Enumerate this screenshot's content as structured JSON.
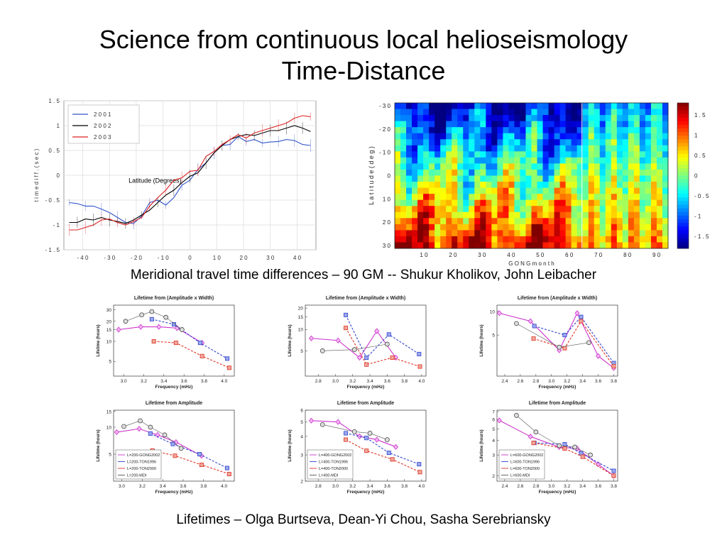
{
  "slide": {
    "title_line1": "Science from continuous local helioseismology",
    "title_line2": "Time-Distance",
    "caption1": "Meridional travel time differences – 90 GM -- Shukur Kholikov, John Leibacher",
    "caption2": "Lifetimes – Olga Burtseva, Dean-Yi Chou, Sasha Serebriansky"
  },
  "chart_data": [
    {
      "id": "meridional",
      "type": "line",
      "ylabel": "time diff. (sec)",
      "annotation": "Latitude (Degrees)",
      "xlim": [
        -47,
        47
      ],
      "ylim": [
        -1.5,
        1.5
      ],
      "xticks": [
        "-40",
        "-30",
        "-20",
        "-10",
        "0",
        "10",
        "20",
        "30",
        "40"
      ],
      "yticks": [
        "1.5",
        "1",
        "0.5",
        "0",
        "-0.5",
        "-1",
        "-1.5"
      ],
      "grid": true,
      "legend": "top-left",
      "x": [
        -45,
        -42,
        -39,
        -36,
        -33,
        -30,
        -27,
        -24,
        -21,
        -18,
        -15,
        -12,
        -9,
        -6,
        -3,
        0,
        3,
        6,
        9,
        12,
        15,
        18,
        21,
        24,
        27,
        30,
        33,
        36,
        39,
        42,
        45
      ],
      "series": [
        {
          "name": "2001",
          "color": "#3355cc",
          "values": [
            -0.55,
            -0.57,
            -0.62,
            -0.62,
            -0.68,
            -0.75,
            -0.85,
            -0.95,
            -0.97,
            -0.82,
            -0.55,
            -0.5,
            -0.6,
            -0.45,
            -0.2,
            -0.1,
            0.12,
            0.25,
            0.45,
            0.6,
            0.62,
            0.78,
            0.68,
            0.72,
            0.65,
            0.67,
            0.68,
            0.72,
            0.7,
            0.62,
            0.6
          ]
        },
        {
          "name": "2002",
          "color": "#000000",
          "values": [
            -0.95,
            -0.95,
            -0.88,
            -0.9,
            -0.85,
            -0.9,
            -0.93,
            -0.97,
            -0.9,
            -0.8,
            -0.7,
            -0.55,
            -0.4,
            -0.3,
            -0.15,
            -0.02,
            0.05,
            0.25,
            0.45,
            0.6,
            0.72,
            0.78,
            0.82,
            0.8,
            0.85,
            0.9,
            0.9,
            0.95,
            1.0,
            0.95,
            0.88
          ]
        },
        {
          "name": "2003",
          "color": "#dd2222",
          "values": [
            -1.1,
            -1.1,
            -1.05,
            -1.0,
            -0.9,
            -0.88,
            -0.95,
            -1.0,
            -0.93,
            -0.85,
            -0.62,
            -0.45,
            -0.3,
            -0.1,
            -0.05,
            0.08,
            0.1,
            0.38,
            0.48,
            0.62,
            0.72,
            0.82,
            0.75,
            0.85,
            0.9,
            0.95,
            1.0,
            1.05,
            1.15,
            1.2,
            1.18
          ]
        }
      ]
    },
    {
      "id": "heatmap",
      "type": "heatmap",
      "xlabel": "GONG month",
      "ylabel": "Latitude (deg)",
      "xticks": [
        "10",
        "20",
        "30",
        "40",
        "50",
        "60",
        "70",
        "80",
        "90"
      ],
      "yticks": [
        "-30",
        "-20",
        "-10",
        "0",
        "10",
        "20",
        "30"
      ],
      "colorbar_ticks": [
        "1.5",
        "1",
        "0.5",
        "0",
        "-0.5",
        "-1",
        "-1.5"
      ],
      "clim": [
        -1.8,
        1.8
      ],
      "colormap": "jet"
    },
    {
      "id": "lifetime-ampwidth-200",
      "type": "line",
      "title": "Lifetime from (Amplitude x Width)",
      "xlabel": "Frequency (mHz)",
      "ylabel": "Lifetime (hours)",
      "ylog": true,
      "xlim": [
        2.9,
        4.1
      ],
      "ylim": [
        3,
        35
      ],
      "xticks": [
        3.0,
        3.2,
        3.4,
        3.6,
        3.8,
        4.0
      ],
      "yticks": [
        5,
        10,
        15,
        20,
        30
      ],
      "series": [
        {
          "name": "L=200-GONG2002",
          "color": "#cc33cc",
          "marker": "diamond",
          "x": [
            2.95,
            3.17,
            3.35,
            3.53,
            3.78
          ],
          "values": [
            15,
            16.5,
            16.5,
            15.8,
            9.5
          ]
        },
        {
          "name": "L=200-TON1996",
          "color": "#3344cc",
          "marker": "square",
          "x": [
            3.28,
            3.5,
            3.76,
            4.03
          ],
          "values": [
            21.5,
            18,
            9.5,
            5.5
          ]
        },
        {
          "name": "L=200-TON2000",
          "color": "#dd3322",
          "marker": "square",
          "x": [
            3.3,
            3.52,
            3.78,
            4.05
          ],
          "values": [
            10,
            9.5,
            6,
            4
          ]
        },
        {
          "name": "L=200-MDI",
          "color": "#555555",
          "marker": "circle",
          "x": [
            3.02,
            3.18,
            3.28,
            3.42,
            3.58
          ],
          "values": [
            20,
            25,
            28,
            23,
            15
          ]
        }
      ]
    },
    {
      "id": "lifetime-ampwidth-400",
      "type": "line",
      "title": "Lifetime from (Amplitude x Width)",
      "xlabel": "Frequency (mHz)",
      "ylabel": "Lifetime (hours)",
      "ylog": true,
      "xlim": [
        2.65,
        4.05
      ],
      "ylim": [
        2.2,
        22
      ],
      "xticks": [
        2.8,
        3.0,
        3.2,
        3.4,
        3.6,
        3.8,
        4.0
      ],
      "yticks": [
        5,
        10,
        15,
        20
      ],
      "series": [
        {
          "name": "L=400-GONG2002",
          "color": "#cc33cc",
          "marker": "diamond",
          "x": [
            2.72,
            3.03,
            3.28,
            3.48,
            3.7
          ],
          "values": [
            7.5,
            7,
            4,
            9.5,
            4
          ]
        },
        {
          "name": "L=400-TON1996",
          "color": "#3344cc",
          "marker": "square",
          "x": [
            3.12,
            3.36,
            3.62,
            3.97
          ],
          "values": [
            16,
            4,
            8.5,
            4.5
          ]
        },
        {
          "name": "L=400-TON2000",
          "color": "#dd3322",
          "marker": "square",
          "x": [
            3.12,
            3.36,
            3.66,
            3.98
          ],
          "values": [
            10.5,
            3.2,
            4,
            3
          ]
        },
        {
          "name": "L=400-MDI",
          "color": "#555555",
          "marker": "circle",
          "x": [
            2.85,
            3.22,
            3.6
          ],
          "values": [
            5,
            5.2,
            6.2
          ]
        }
      ]
    },
    {
      "id": "lifetime-ampwidth-600",
      "type": "line",
      "title": "Lifetime from (Amplitude x Width)",
      "xlabel": "Frequency (mHz)",
      "ylabel": "Lifetime (hours)",
      "ylog": true,
      "xlim": [
        2.3,
        3.85
      ],
      "ylim": [
        1.5,
        12
      ],
      "xticks": [
        2.4,
        2.6,
        2.8,
        3.0,
        3.2,
        3.4,
        3.6,
        3.8
      ],
      "yticks": [
        5,
        10
      ],
      "series": [
        {
          "name": "L=600-GONG2002",
          "color": "#cc33cc",
          "marker": "diamond",
          "x": [
            2.33,
            2.73,
            3.1,
            3.33,
            3.6,
            3.8
          ],
          "values": [
            9.5,
            7.5,
            3.2,
            9.5,
            2.7,
            1.9
          ]
        },
        {
          "name": "L=600-TON1996",
          "color": "#3344cc",
          "marker": "square",
          "x": [
            2.78,
            3.17,
            3.38,
            3.8
          ],
          "values": [
            6.5,
            5,
            8.5,
            2.2
          ]
        },
        {
          "name": "L=600-TON2000",
          "color": "#dd3322",
          "marker": "square",
          "x": [
            2.77,
            3.17,
            3.38,
            3.8
          ],
          "values": [
            4.5,
            3.4,
            7.5,
            2
          ]
        },
        {
          "name": "L=600-MDI",
          "color": "#555555",
          "marker": "circle",
          "x": [
            2.55,
            3.1,
            3.48
          ],
          "values": [
            7,
            3.5,
            4
          ]
        }
      ]
    },
    {
      "id": "lifetime-amp-200",
      "type": "line",
      "title": "Lifetime from Amplitude",
      "xlabel": "Frequency (mHz)",
      "ylabel": "Lifetime (hours)",
      "ylog": true,
      "xlim": [
        2.92,
        4.1
      ],
      "ylim": [
        2.5,
        15.5
      ],
      "xticks": [
        3.0,
        3.2,
        3.4,
        3.6,
        3.8,
        4.0
      ],
      "yticks": [
        5,
        10,
        15
      ],
      "legend": "bottom-left",
      "series": [
        {
          "name": "L=200-GONG2002",
          "color": "#cc33cc",
          "marker": "diamond",
          "x": [
            2.95,
            3.17,
            3.35,
            3.53,
            3.78
          ],
          "values": [
            8.8,
            9.6,
            8.2,
            6.8,
            4.8
          ]
        },
        {
          "name": "L=200-TON1996",
          "color": "#3344cc",
          "marker": "square",
          "x": [
            3.28,
            3.5,
            3.76,
            4.03
          ],
          "values": [
            8.5,
            6.5,
            5,
            3.5
          ]
        },
        {
          "name": "L=200-TON2000",
          "color": "#dd3322",
          "marker": "square",
          "x": [
            3.3,
            3.52,
            3.78,
            4.05
          ],
          "values": [
            5.5,
            4.8,
            3.8,
            3
          ]
        },
        {
          "name": "L=200-MDI",
          "color": "#555555",
          "marker": "circle",
          "x": [
            3.02,
            3.18,
            3.28,
            3.42,
            3.58
          ],
          "values": [
            10.2,
            11.8,
            10,
            8.2,
            5.8
          ]
        }
      ]
    },
    {
      "id": "lifetime-amp-400",
      "type": "line",
      "title": "Lifetime from Amplitude",
      "xlabel": "Frequency (mHz)",
      "ylabel": "Lifetime (hours)",
      "ylog": true,
      "xlim": [
        2.65,
        4.05
      ],
      "ylim": [
        2,
        6
      ],
      "xticks": [
        2.8,
        3.0,
        3.2,
        3.4,
        3.6,
        3.8,
        4.0
      ],
      "yticks": [
        2,
        3,
        4,
        5,
        6
      ],
      "legend": "bottom-left",
      "series": [
        {
          "name": "L=400-GONG2002",
          "color": "#cc33cc",
          "marker": "diamond",
          "x": [
            2.72,
            3.03,
            3.28,
            3.48,
            3.7
          ],
          "values": [
            5.1,
            5,
            4,
            3.8,
            3.4
          ]
        },
        {
          "name": "L=400-TON1996",
          "color": "#3344cc",
          "marker": "square",
          "x": [
            3.12,
            3.36,
            3.62,
            3.97
          ],
          "values": [
            4.2,
            3.9,
            3.1,
            2.6
          ]
        },
        {
          "name": "L=400-TON2000",
          "color": "#dd3322",
          "marker": "square",
          "x": [
            3.12,
            3.36,
            3.66,
            3.98
          ],
          "values": [
            3.8,
            3.2,
            2.8,
            2.3
          ]
        },
        {
          "name": "L=400-MDI",
          "color": "#555555",
          "marker": "circle",
          "x": [
            2.85,
            3.22,
            3.4,
            3.6
          ],
          "values": [
            4.8,
            4.3,
            4.2,
            3.8
          ]
        }
      ]
    },
    {
      "id": "lifetime-amp-600",
      "type": "line",
      "title": "Lifetime from Amplitude",
      "xlabel": "Frequency (mHz)",
      "ylabel": "Lifetime (hours)",
      "ylog": true,
      "xlim": [
        2.3,
        3.85
      ],
      "ylim": [
        1.8,
        7.2
      ],
      "xticks": [
        2.4,
        2.6,
        2.8,
        3.0,
        3.2,
        3.4,
        3.6,
        3.8
      ],
      "yticks": [
        2,
        3,
        4,
        5,
        6,
        7
      ],
      "legend": "bottom-left",
      "series": [
        {
          "name": "L=600-GONG2002",
          "color": "#cc33cc",
          "marker": "diamond",
          "x": [
            2.33,
            2.73,
            3.1,
            3.33,
            3.6,
            3.8
          ],
          "values": [
            5.9,
            4.3,
            3.5,
            3.4,
            2.5,
            2.0
          ]
        },
        {
          "name": "L=600-TON1996",
          "color": "#3344cc",
          "marker": "square",
          "x": [
            2.78,
            3.17,
            3.38,
            3.8
          ],
          "values": [
            3.8,
            3.7,
            3.1,
            2.2
          ]
        },
        {
          "name": "L=600-TON2000",
          "color": "#dd3322",
          "marker": "square",
          "x": [
            2.77,
            3.17,
            3.4,
            3.8
          ],
          "values": [
            3.8,
            3.4,
            2.9,
            2.0
          ]
        },
        {
          "name": "L=600-MDI",
          "color": "#555555",
          "marker": "circle",
          "x": [
            2.55,
            2.8,
            3.1,
            3.3,
            3.5
          ],
          "values": [
            6.5,
            4.7,
            3.6,
            3.5,
            3.0
          ]
        }
      ]
    }
  ]
}
